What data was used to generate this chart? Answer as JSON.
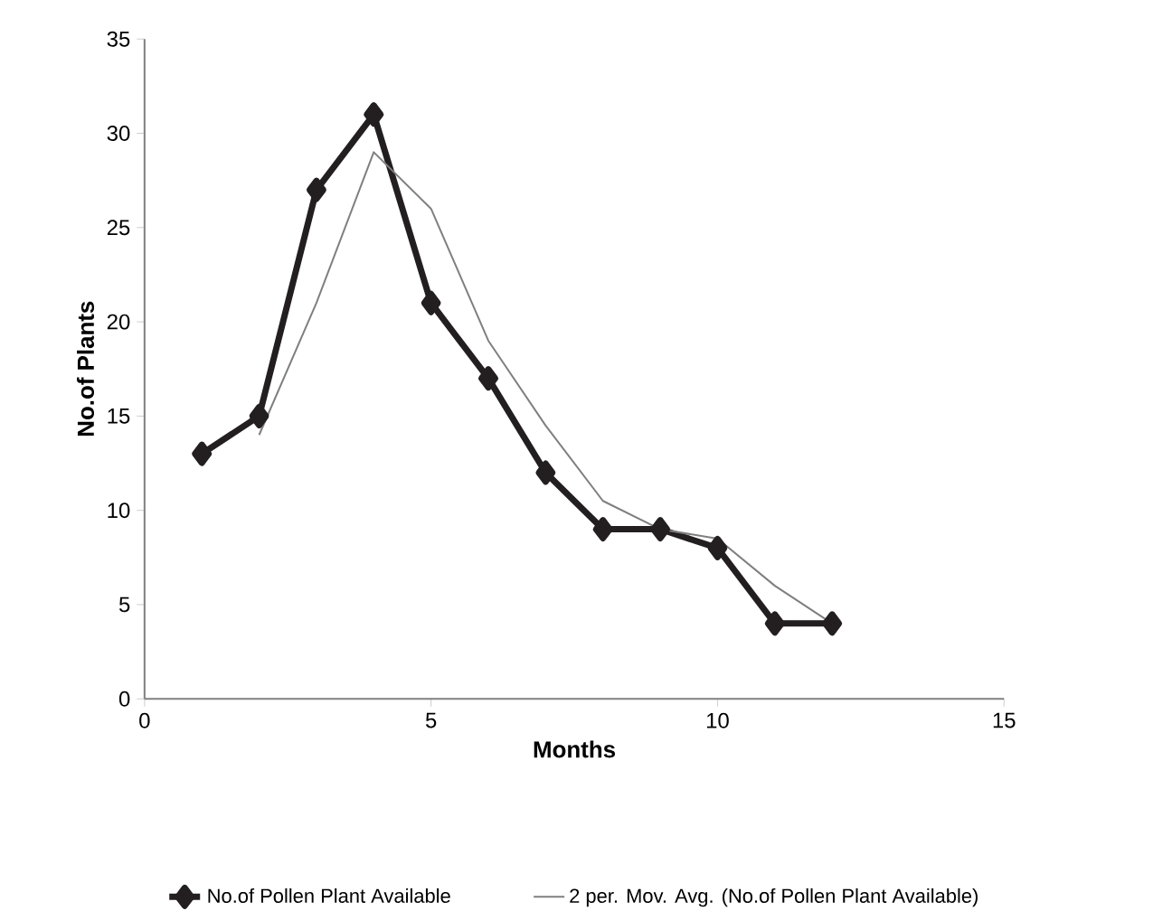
{
  "chart_data": {
    "type": "line",
    "xlabel": "Months",
    "ylabel": "No.of Plants",
    "xlim": [
      0,
      15
    ],
    "ylim": [
      0,
      35
    ],
    "xticks": [
      0,
      5,
      10,
      15
    ],
    "yticks": [
      0,
      5,
      10,
      15,
      20,
      25,
      30,
      35
    ],
    "grid": false,
    "legend": "bottom",
    "series": [
      {
        "name": "No.of Pollen Plant Available",
        "color": "#231f20",
        "marker": "diamond",
        "x": [
          1,
          2,
          3,
          4,
          5,
          6,
          7,
          8,
          9,
          10,
          11,
          12
        ],
        "values": [
          13,
          15,
          27,
          31,
          21,
          17,
          12,
          9,
          9,
          8,
          4,
          4
        ]
      },
      {
        "name": "2 per. Mov. Avg. (No.of Pollen Plant Available)",
        "color": "#7f7f7f",
        "marker": "none",
        "x": [
          2,
          3,
          4,
          5,
          6,
          7,
          8,
          9,
          10,
          11,
          12
        ],
        "values": [
          14,
          21,
          29,
          26,
          19,
          14.5,
          10.5,
          9,
          8.5,
          6,
          4
        ]
      }
    ]
  }
}
